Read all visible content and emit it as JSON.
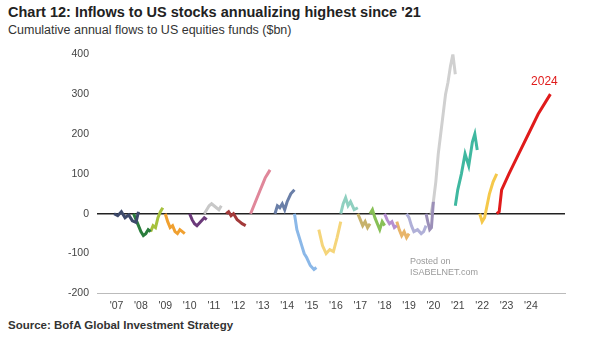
{
  "chart_data": {
    "type": "line",
    "title": "Chart 12: Inflows to US stocks annualizing highest since '21",
    "subtitle": "Cumulative annual flows to US equities funds ($bn)",
    "source": "Source: BofA Global Investment Strategy",
    "watermark": [
      "Posted on",
      "ISABELNET.com"
    ],
    "xlim": [
      2006.2,
      2025.4
    ],
    "xticks": [
      {
        "value": 2007,
        "label": "'07"
      },
      {
        "value": 2008,
        "label": "'08"
      },
      {
        "value": 2009,
        "label": "'09"
      },
      {
        "value": 2010,
        "label": "'10"
      },
      {
        "value": 2011,
        "label": "'11"
      },
      {
        "value": 2012,
        "label": "'12"
      },
      {
        "value": 2013,
        "label": "'13"
      },
      {
        "value": 2014,
        "label": "'14"
      },
      {
        "value": 2015,
        "label": "'15"
      },
      {
        "value": 2016,
        "label": "'16"
      },
      {
        "value": 2017,
        "label": "'17"
      },
      {
        "value": 2018,
        "label": "'18"
      },
      {
        "value": 2019,
        "label": "'19"
      },
      {
        "value": 2020,
        "label": "'20"
      },
      {
        "value": 2021,
        "label": "'21"
      },
      {
        "value": 2022,
        "label": "'22"
      },
      {
        "value": 2023,
        "label": "'23"
      },
      {
        "value": 2024,
        "label": "'24"
      }
    ],
    "ylim": [
      -200,
      400
    ],
    "yticks": [
      -200,
      -100,
      0,
      100,
      200,
      300,
      400
    ],
    "grid": false,
    "series": [
      {
        "color": "#3d4a6b",
        "x": [
          2006.9,
          2007.05,
          2007.2,
          2007.35,
          2007.5,
          2007.65,
          2007.8,
          2007.9
        ],
        "values": [
          0,
          -5,
          5,
          -10,
          -3,
          -18,
          -22,
          5
        ]
      },
      {
        "color": "#2a7d3c",
        "x": [
          2007.7,
          2007.8,
          2007.9,
          2008.0,
          2008.1,
          2008.2,
          2008.3,
          2008.4
        ],
        "values": [
          0,
          -15,
          -30,
          -45,
          -55,
          -50,
          -40,
          -45
        ]
      },
      {
        "color": "#a6c13c",
        "x": [
          2008.4,
          2008.5,
          2008.6,
          2008.7,
          2008.8,
          2008.9
        ],
        "values": [
          -45,
          -30,
          -35,
          -10,
          5,
          15
        ]
      },
      {
        "color": "#f0a030",
        "x": [
          2009.0,
          2009.1,
          2009.2,
          2009.3,
          2009.4,
          2009.5,
          2009.6,
          2009.7,
          2009.8
        ],
        "values": [
          0,
          -20,
          -35,
          -30,
          -45,
          -50,
          -40,
          -45,
          -50
        ]
      },
      {
        "color": "#6b3a7a",
        "x": [
          2010.0,
          2010.1,
          2010.2,
          2010.3,
          2010.45,
          2010.6,
          2010.7
        ],
        "values": [
          0,
          -15,
          -25,
          -30,
          -20,
          -10,
          -15
        ]
      },
      {
        "color": "#c8c8c8",
        "x": [
          2010.6,
          2010.7,
          2010.8,
          2010.9,
          2011.0,
          2011.1,
          2011.2,
          2011.3
        ],
        "values": [
          0,
          10,
          20,
          25,
          20,
          15,
          10,
          20
        ]
      },
      {
        "color": "#a33a3a",
        "x": [
          2011.5,
          2011.6,
          2011.7,
          2011.8,
          2011.95,
          2012.05,
          2012.15,
          2012.3
        ],
        "values": [
          0,
          5,
          -5,
          0,
          -15,
          -20,
          -25,
          -30
        ]
      },
      {
        "color": "#e0879a",
        "x": [
          2012.5,
          2012.6,
          2012.7,
          2012.8,
          2012.9,
          2013.0,
          2013.1,
          2013.2,
          2013.3
        ],
        "values": [
          0,
          15,
          30,
          45,
          60,
          75,
          90,
          100,
          110
        ]
      },
      {
        "color": "#6a7fa8",
        "x": [
          2013.5,
          2013.6,
          2013.7,
          2013.8,
          2013.9,
          2014.0,
          2014.15,
          2014.3
        ],
        "values": [
          0,
          20,
          15,
          25,
          10,
          30,
          50,
          60
        ]
      },
      {
        "color": "#8bb8e8",
        "x": [
          2014.3,
          2014.4,
          2014.5,
          2014.6,
          2014.7,
          2014.8,
          2014.95,
          2015.1,
          2015.2
        ],
        "values": [
          0,
          -40,
          -60,
          -80,
          -100,
          -110,
          -130,
          -140,
          -135
        ]
      },
      {
        "color": "#f5d57a",
        "x": [
          2015.3,
          2015.45,
          2015.6,
          2015.75,
          2015.9,
          2016.05,
          2016.2
        ],
        "values": [
          -40,
          -80,
          -100,
          -90,
          -95,
          -60,
          -20
        ]
      },
      {
        "color": "#8fd0c0",
        "x": [
          2016.2,
          2016.3,
          2016.4,
          2016.5,
          2016.6,
          2016.75,
          2016.9
        ],
        "values": [
          0,
          25,
          40,
          20,
          30,
          10,
          15
        ]
      },
      {
        "color": "#c7b26a",
        "x": [
          2016.9,
          2017.0,
          2017.1,
          2017.2,
          2017.3,
          2017.4
        ],
        "values": [
          0,
          -15,
          -30,
          -20,
          -35,
          -25
        ]
      },
      {
        "color": "#88c057",
        "x": [
          2017.4,
          2017.5,
          2017.6,
          2017.7,
          2017.8,
          2017.9,
          2018.0
        ],
        "values": [
          0,
          10,
          -10,
          -25,
          -40,
          -20,
          -30
        ]
      },
      {
        "color": "#b58fd0",
        "x": [
          2018.0,
          2018.1,
          2018.2,
          2018.3,
          2018.4,
          2018.5
        ],
        "values": [
          0,
          -15,
          -25,
          -20,
          -35,
          -30
        ]
      },
      {
        "color": "#e8b56a",
        "x": [
          2018.5,
          2018.6,
          2018.7,
          2018.8,
          2018.9,
          2019.0
        ],
        "values": [
          -20,
          -40,
          -55,
          -45,
          -60,
          -50
        ]
      },
      {
        "color": "#b0b0d8",
        "x": [
          2018.9,
          2019.0,
          2019.1,
          2019.2,
          2019.35,
          2019.5,
          2019.6,
          2019.7
        ],
        "values": [
          0,
          -10,
          -30,
          -45,
          -40,
          -50,
          -45,
          -30
        ]
      },
      {
        "color": "#9b8fb8",
        "x": [
          2019.7,
          2019.77,
          2019.85,
          2019.92,
          2020.0
        ],
        "values": [
          0,
          -20,
          -40,
          -35,
          30
        ]
      },
      {
        "color": "#d0d0d0",
        "x": [
          2019.9,
          2020.0,
          2020.1,
          2020.2,
          2020.3,
          2020.4,
          2020.5,
          2020.6,
          2020.7,
          2020.8,
          2020.9
        ],
        "values": [
          0,
          30,
          80,
          150,
          200,
          250,
          300,
          330,
          370,
          400,
          350
        ]
      },
      {
        "color": "#3fb8a0",
        "x": [
          2020.9,
          2021.0,
          2021.15,
          2021.3,
          2021.45,
          2021.6,
          2021.7,
          2021.8
        ],
        "values": [
          20,
          60,
          100,
          150,
          120,
          180,
          200,
          160
        ]
      },
      {
        "color": "#f5c84a",
        "x": [
          2021.9,
          2022.0,
          2022.1,
          2022.2,
          2022.3,
          2022.45,
          2022.6
        ],
        "values": [
          0,
          -20,
          -10,
          20,
          50,
          80,
          100
        ]
      },
      {
        "name": "2024",
        "color": "#e01b1b",
        "x": [
          2022.6,
          2022.7,
          2022.8,
          2023.1,
          2023.5,
          2023.9,
          2024.3,
          2024.8
        ],
        "values": [
          0,
          5,
          60,
          100,
          150,
          200,
          250,
          300
        ]
      }
    ]
  }
}
